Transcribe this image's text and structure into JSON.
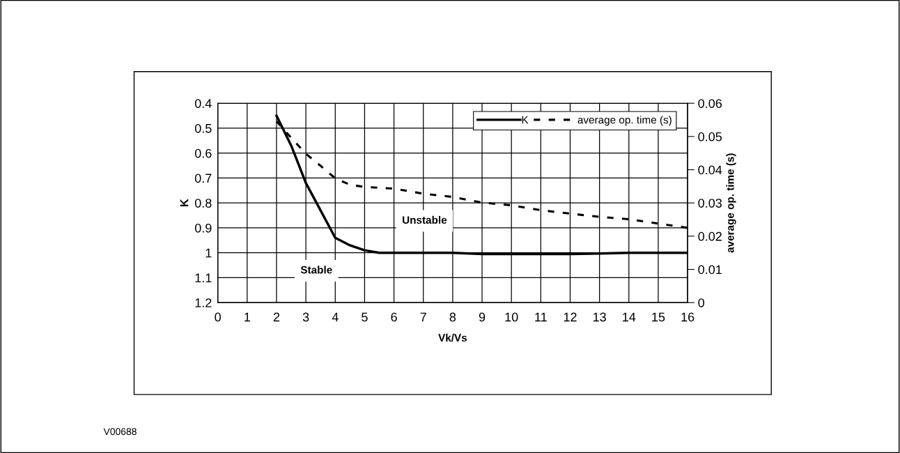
{
  "chart_data": {
    "type": "line",
    "xlabel": "Vk/Vs",
    "ylabel": "K",
    "y2label": "average op. time (s)",
    "xlim": [
      0,
      16
    ],
    "xticks": [
      0,
      1,
      2,
      3,
      4,
      5,
      6,
      7,
      8,
      9,
      10,
      11,
      12,
      13,
      14,
      15,
      16
    ],
    "ylim": [
      1.2,
      0.4
    ],
    "yticks": [
      0.4,
      0.5,
      0.6,
      0.7,
      0.8,
      0.9,
      1,
      1.1,
      1.2
    ],
    "y2lim": [
      0,
      0.06
    ],
    "y2ticks": [
      0,
      0.01,
      0.02,
      0.03,
      0.04,
      0.05,
      0.06
    ],
    "grid": true,
    "legend": "top right",
    "marker": "none",
    "series": [
      {
        "name": "K",
        "color": "#000000",
        "line_style": "solid",
        "x": [
          2,
          2.5,
          3,
          3.5,
          4,
          4.5,
          5,
          5.5,
          6,
          8,
          9,
          10,
          11,
          12,
          13,
          14,
          15,
          16
        ],
        "values": [
          0.45,
          0.57,
          0.72,
          0.83,
          0.94,
          0.97,
          0.99,
          1.0,
          1.0,
          1.0,
          1.005,
          1.005,
          1.005,
          1.005,
          1.003,
          1.0,
          1.0,
          1.0
        ]
      },
      {
        "name": "average op. time (s)",
        "color": "#000000",
        "line_style": "dashed",
        "axis": "y2",
        "x": [
          2,
          2.5,
          3,
          3.5,
          4,
          4.5,
          5,
          6,
          7,
          8,
          9,
          10,
          11,
          12,
          13,
          14,
          15,
          16
        ],
        "values": [
          0.0546,
          0.0496,
          0.0448,
          0.0412,
          0.0374,
          0.0355,
          0.0348,
          0.0343,
          0.0328,
          0.0318,
          0.0301,
          0.0293,
          0.0278,
          0.0268,
          0.0258,
          0.0251,
          0.0238,
          0.0225
        ]
      }
    ],
    "annotations": [
      "Unstable",
      "Stable",
      "V00688"
    ]
  }
}
